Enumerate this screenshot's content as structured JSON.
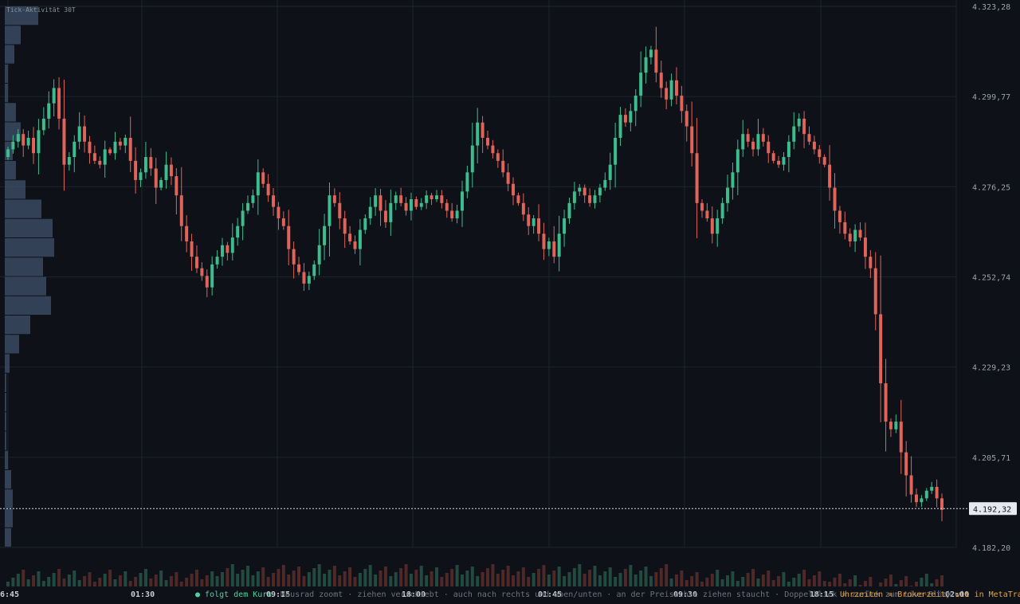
{
  "chart_data": {
    "type": "candlestick",
    "ylim": [
      4182.2,
      4323.28
    ],
    "y_ticks": [
      "4.323,28",
      "4.299,77",
      "4.276,25",
      "4.252,74",
      "4.229,23",
      "4.205,71",
      "4.182,20"
    ],
    "y_tick_values": [
      4323.28,
      4299.77,
      4276.25,
      4252.74,
      4229.23,
      4205.71,
      4182.2
    ],
    "x_ticks": [
      "6:45",
      "01:30",
      "09:15",
      "18:00",
      "01:45",
      "09:30",
      "18:15",
      "02:00"
    ],
    "current_price": 4192.32,
    "current_price_label": "4.192,32",
    "colors": {
      "up": "#3dbd8d",
      "down": "#e0645a",
      "background": "#0e1117",
      "grid": "#1e232b",
      "profile": "#3a4a63"
    },
    "close_series": [
      4286,
      4288,
      4290,
      4287,
      4289,
      4285,
      4291,
      4294,
      4298,
      4302,
      4294,
      4282,
      4284,
      4288,
      4292,
      4288,
      4285,
      4283,
      4282,
      4286,
      4285,
      4288,
      4287,
      4289,
      4283,
      4278,
      4280,
      4284,
      4281,
      4276,
      4278,
      4282,
      4279,
      4274,
      4266,
      4262,
      4258,
      4255,
      4253,
      4250,
      4256,
      4258,
      4261,
      4259,
      4263,
      4266,
      4270,
      4272,
      4274,
      4280,
      4277,
      4274,
      4271,
      4268,
      4266,
      4260,
      4256,
      4254,
      4251,
      4253,
      4256,
      4261,
      4266,
      4274,
      4272,
      4268,
      4264,
      4262,
      4260,
      4265,
      4268,
      4271,
      4274,
      4270,
      4267,
      4272,
      4274,
      4272,
      4270,
      4273,
      4271,
      4272,
      4274,
      4273,
      4274,
      4272,
      4270,
      4268,
      4270,
      4275,
      4280,
      4287,
      4293,
      4289,
      4287,
      4285,
      4283,
      4280,
      4277,
      4274,
      4272,
      4269,
      4266,
      4268,
      4264,
      4260,
      4262,
      4258,
      4264,
      4268,
      4272,
      4275,
      4276,
      4274,
      4272,
      4274,
      4276,
      4278,
      4282,
      4289,
      4295,
      4293,
      4296,
      4300,
      4306,
      4310,
      4312,
      4306,
      4302,
      4299,
      4304,
      4300,
      4296,
      4292,
      4285,
      4272,
      4270,
      4268,
      4264,
      4268,
      4272,
      4276,
      4280,
      4286,
      4290,
      4288,
      4286,
      4290,
      4288,
      4285,
      4283,
      4282,
      4284,
      4288,
      4292,
      4294,
      4290,
      4288,
      4286,
      4284,
      4282,
      4276,
      4270,
      4267,
      4264,
      4262,
      4265,
      4263,
      4258,
      4255,
      4243,
      4225,
      4215,
      4213,
      4215,
      4207,
      4201,
      4196,
      4194,
      4195,
      4197,
      4198,
      4195,
      4192
    ]
  },
  "panel": {
    "profile_label": "Tick-Aktivität 30T"
  },
  "status": {
    "follow_label": "● folgt dem Kurs",
    "hint_text": "· Mausrad zoomt · ziehen verschiebt · auch nach rechts und oben/unten · an der Preisachse ziehen staucht · Doppelklick = zurück zum Live-Blick",
    "broker_label": "Uhrzeiten = Brokerzeit, wie in MetaTrader"
  }
}
